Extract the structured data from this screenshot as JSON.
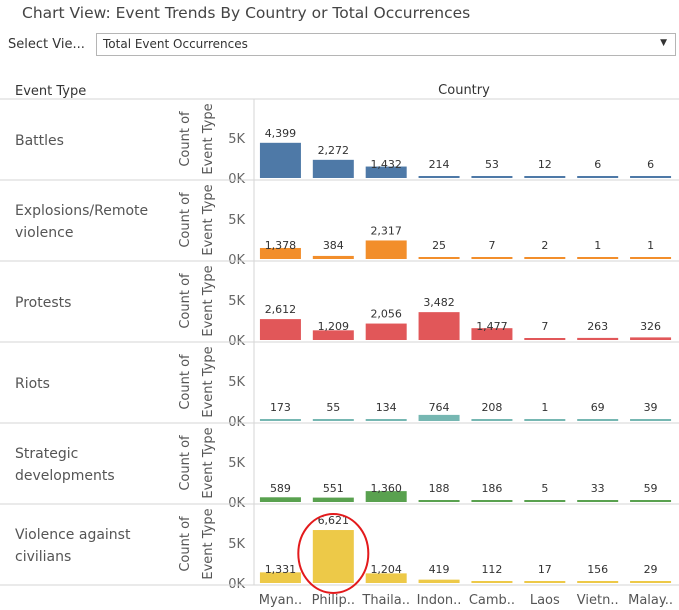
{
  "page_title": "Chart View: Event Trends By Country or Total Occurrences",
  "selector": {
    "label": "Select Vie...",
    "value": "Total Event Occurrences",
    "caret_icon": "chevron-down-icon"
  },
  "chart_data": {
    "type": "bar",
    "row_header": "Event Type",
    "column_header": "Country",
    "ylabel": [
      "Count of",
      "Event Type"
    ],
    "y_ticks": [
      0,
      5000
    ],
    "y_tick_labels": [
      "0K",
      "5K"
    ],
    "ylim": [
      0,
      7000
    ],
    "categories": [
      "Myan..",
      "Philip..",
      "Thaila..",
      "Indon..",
      "Camb..",
      "Laos",
      "Vietn..",
      "Malay.."
    ],
    "series": [
      {
        "name": [
          "Battles"
        ],
        "color": "#4e79a7",
        "values": [
          4399,
          2272,
          1432,
          214,
          53,
          12,
          6,
          6
        ],
        "labels": [
          "4,399",
          "2,272",
          "1,432",
          "214",
          "53",
          "12",
          "6",
          "6"
        ]
      },
      {
        "name": [
          "Explosions/Remote",
          "violence"
        ],
        "color": "#f28e2b",
        "values": [
          1378,
          384,
          2317,
          25,
          7,
          2,
          1,
          1
        ],
        "labels": [
          "1,378",
          "384",
          "2,317",
          "25",
          "7",
          "2",
          "1",
          "1"
        ]
      },
      {
        "name": [
          "Protests"
        ],
        "color": "#e15759",
        "values": [
          2612,
          1209,
          2056,
          3482,
          1477,
          7,
          263,
          326
        ],
        "labels": [
          "2,612",
          "1,209",
          "2,056",
          "3,482",
          "1,477",
          "7",
          "263",
          "326"
        ]
      },
      {
        "name": [
          "Riots"
        ],
        "color": "#76b7b2",
        "values": [
          173,
          55,
          134,
          764,
          208,
          1,
          69,
          39
        ],
        "labels": [
          "173",
          "55",
          "134",
          "764",
          "208",
          "1",
          "69",
          "39"
        ]
      },
      {
        "name": [
          "Strategic",
          "developments"
        ],
        "color": "#59a14f",
        "values": [
          589,
          551,
          1360,
          188,
          186,
          5,
          33,
          59
        ],
        "labels": [
          "589",
          "551",
          "1,360",
          "188",
          "186",
          "5",
          "33",
          "59"
        ]
      },
      {
        "name": [
          "Violence against",
          "civilians"
        ],
        "color": "#edc948",
        "values": [
          1331,
          6621,
          1204,
          419,
          112,
          17,
          156,
          29
        ],
        "labels": [
          "1,331",
          "6,621",
          "1,204",
          "419",
          "112",
          "17",
          "156",
          "29"
        ]
      }
    ],
    "annotation": {
      "type": "circle",
      "color": "#e31a1c",
      "series_index": 5,
      "category_index": 1
    },
    "grid": false,
    "legend": "none"
  }
}
